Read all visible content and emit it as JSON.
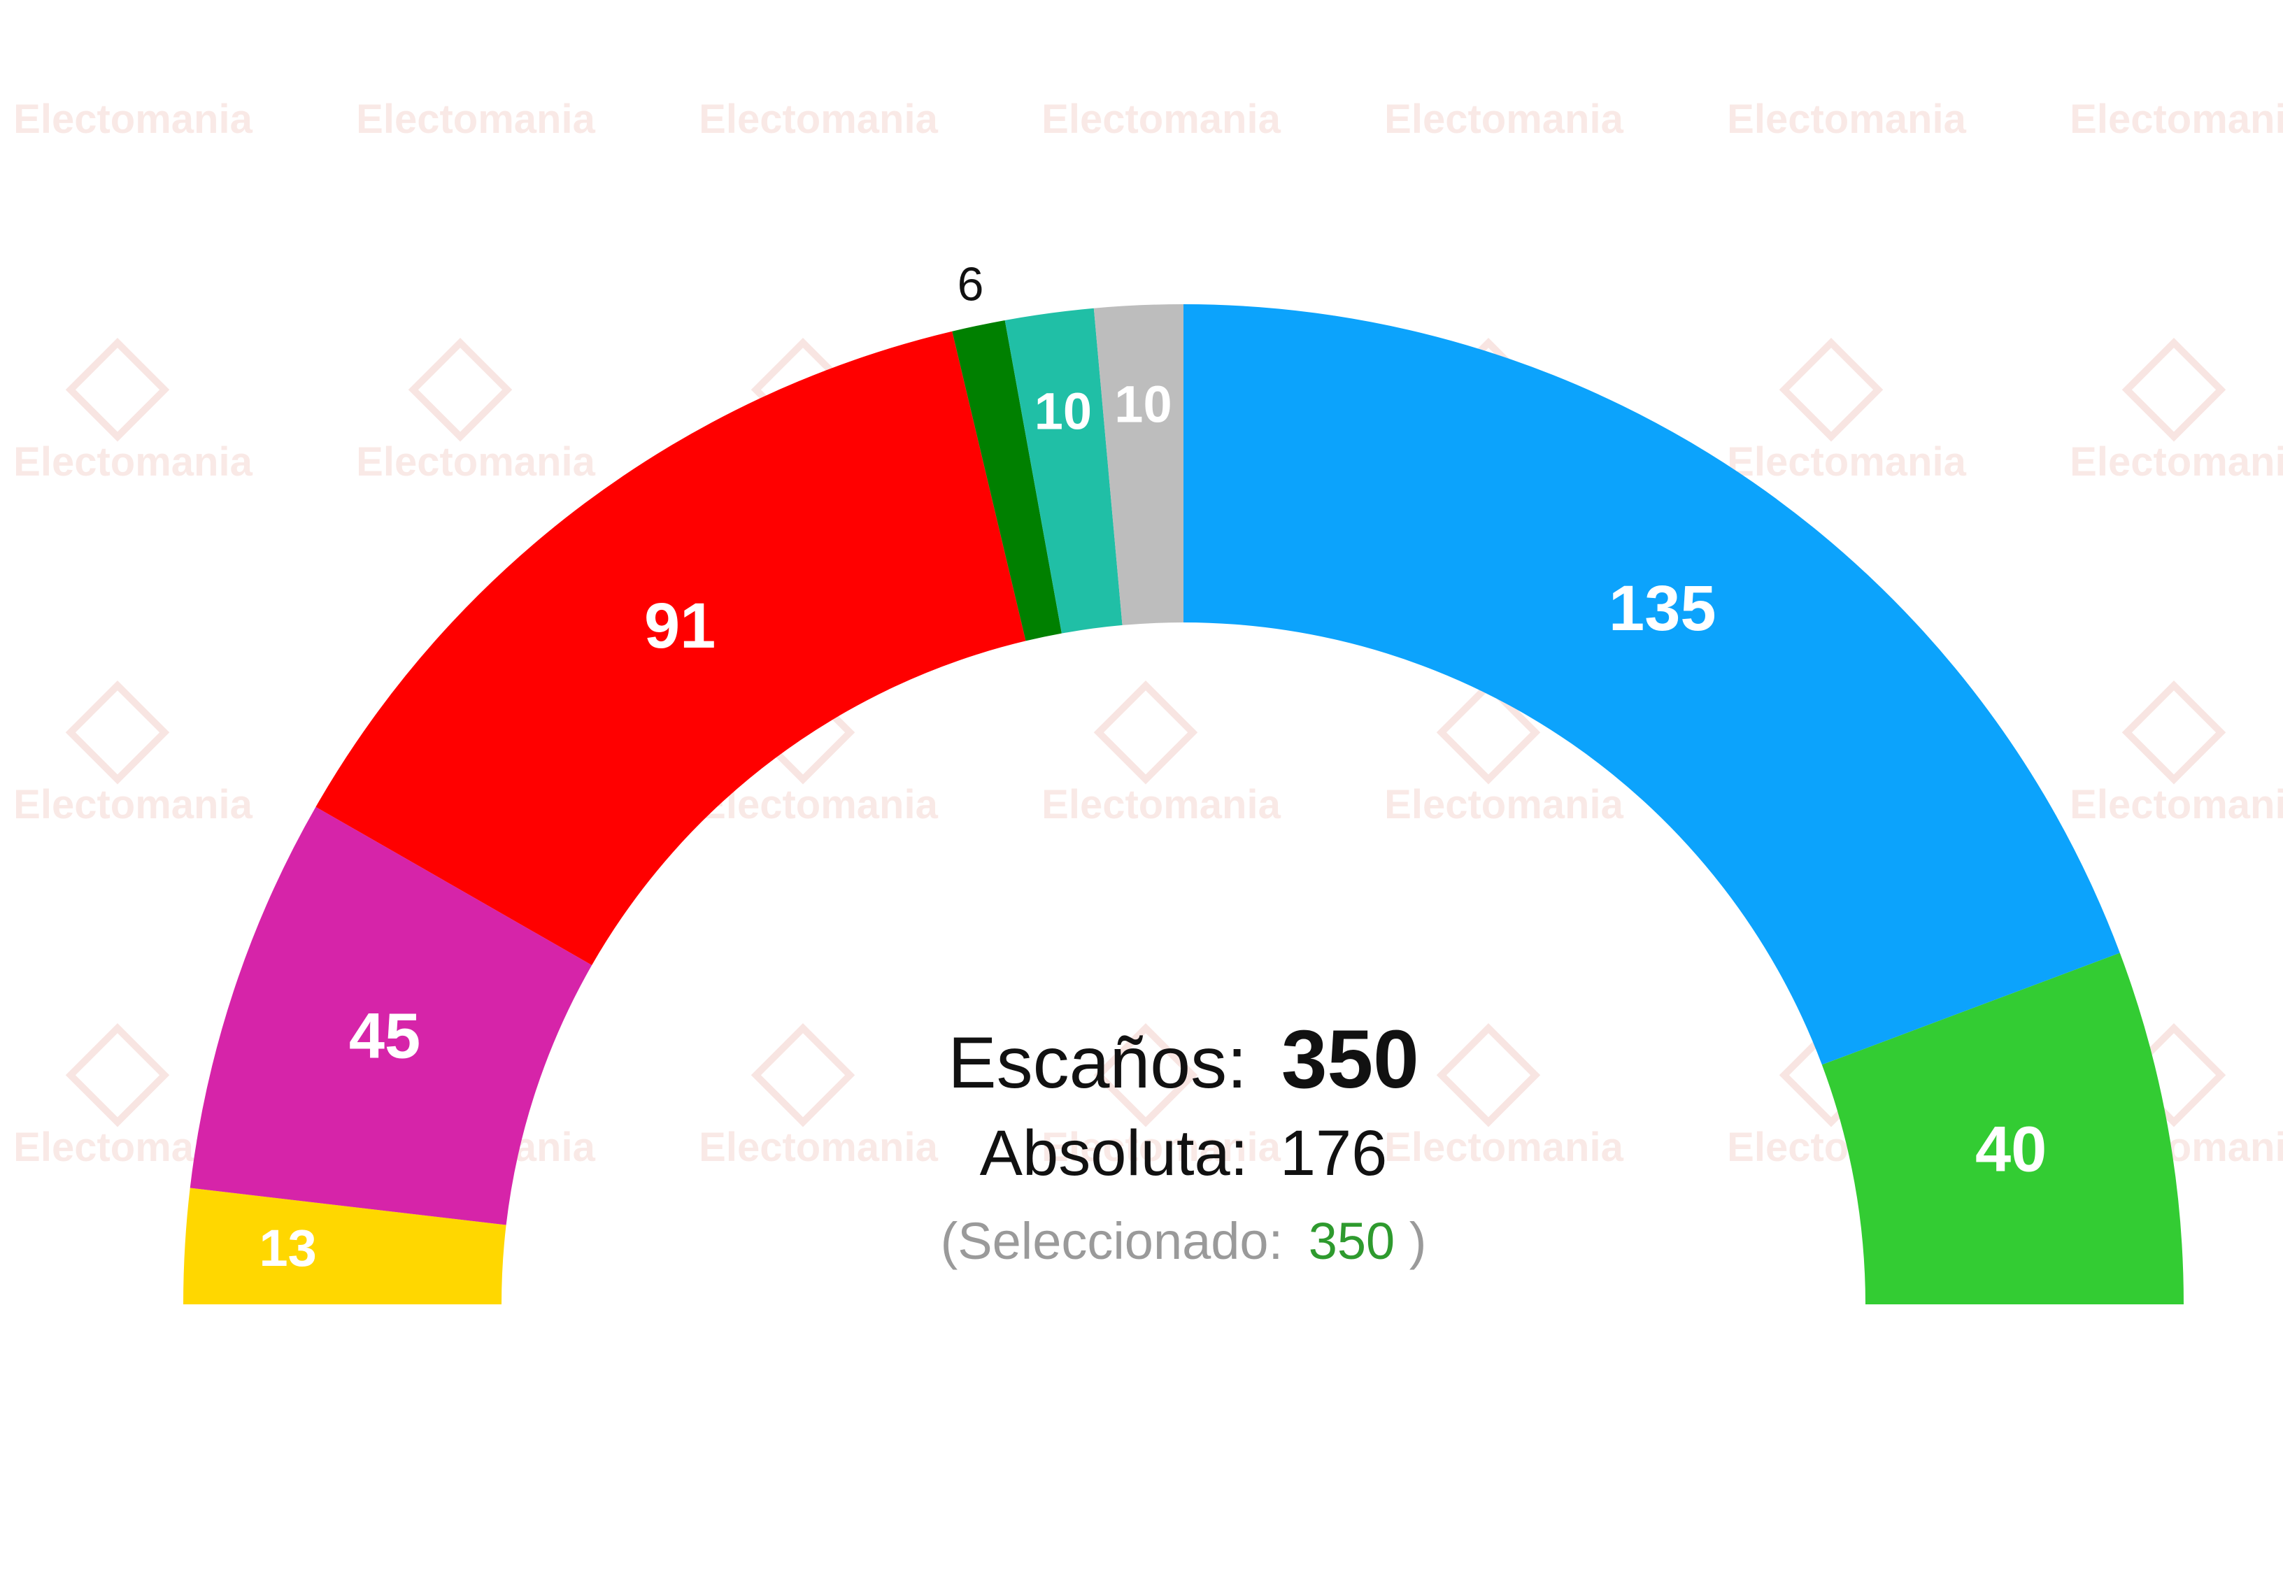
{
  "watermark": {
    "text": "Electomania"
  },
  "chart_data": {
    "type": "pie",
    "subtype": "parliament-hemicycle",
    "total_seats": 350,
    "segments": [
      {
        "value": 13,
        "color": "#ffd700",
        "label": "13"
      },
      {
        "value": 45,
        "color": "#d624a9",
        "label": "45"
      },
      {
        "value": 91,
        "color": "#ff0000",
        "label": "91"
      },
      {
        "value": 6,
        "color": "#008000",
        "label": "6"
      },
      {
        "value": 10,
        "color": "#20bfa6",
        "label": "10"
      },
      {
        "value": 10,
        "color": "#bdbdbd",
        "label": "10"
      },
      {
        "value": 135,
        "color": "#0ca3fc",
        "label": "135"
      },
      {
        "value": 40,
        "color": "#33cc33",
        "label": "40"
      }
    ]
  },
  "center": {
    "seats_label": "Escaños:",
    "seats_value": "350",
    "majority_label": "Absoluta:",
    "majority_value": "176",
    "selected_open": "(Seleccionado:",
    "selected_value": "350",
    "selected_close": ")",
    "selected_color": "#2e9a2e"
  }
}
